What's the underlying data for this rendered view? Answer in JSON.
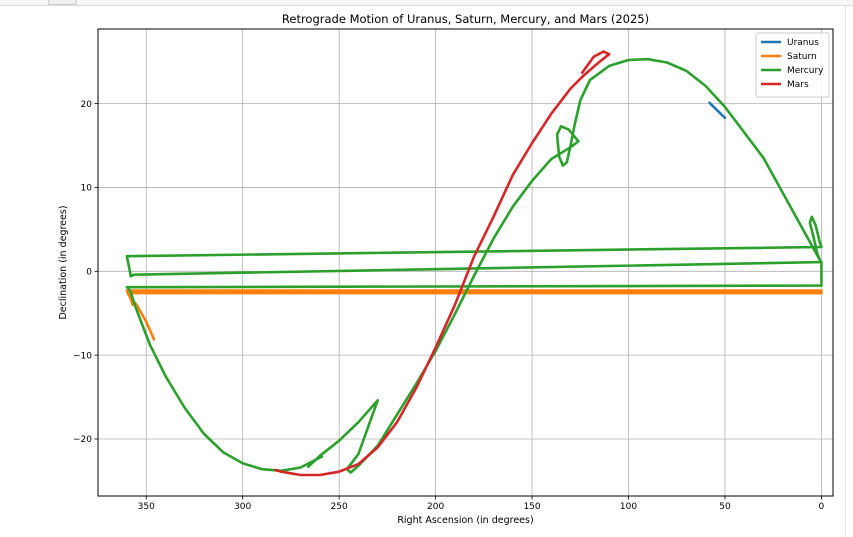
{
  "chart_data": {
    "type": "line",
    "title": "Retrograde Motion of Uranus, Saturn, Mercury, and Mars (2025)",
    "xlabel": "Right Ascension (in degrees)",
    "ylabel": "Declination (in degrees)",
    "x_inverted": true,
    "xlim": [
      375,
      -6
    ],
    "ylim": [
      -26.8,
      28.9
    ],
    "xticks": [
      350,
      300,
      250,
      200,
      150,
      100,
      50,
      0
    ],
    "xtick_labels": [
      "350",
      "300",
      "250",
      "200",
      "150",
      "100",
      "50",
      "0"
    ],
    "yticks": [
      20,
      10,
      0,
      -10,
      -20
    ],
    "ytick_labels": [
      "20",
      "10",
      "0",
      "−10",
      "−20"
    ],
    "grid": true,
    "legend_position": "upper right",
    "series": [
      {
        "name": "Uranus",
        "color": "#1f77b4",
        "points": [
          [
            58,
            20.1
          ],
          [
            50,
            18.3
          ]
        ]
      },
      {
        "name": "Saturn",
        "color": "#ff7f0e",
        "points": [
          [
            346,
            -8.1
          ],
          [
            350,
            -6.0
          ],
          [
            355,
            -4.0
          ],
          [
            359,
            -2.9
          ],
          [
            360,
            -2.3
          ],
          [
            0,
            -2.3
          ],
          [
            0,
            -2.6
          ],
          [
            359.5,
            -2.6
          ],
          [
            358,
            -3.3
          ],
          [
            357,
            -4.0
          ]
        ]
      },
      {
        "name": "Mercury",
        "color": "#2ca02c",
        "points": [
          [
            259,
            -22.1
          ],
          [
            270,
            -23.4
          ],
          [
            280,
            -23.8
          ],
          [
            290,
            -23.6
          ],
          [
            300,
            -22.9
          ],
          [
            310,
            -21.6
          ],
          [
            320,
            -19.4
          ],
          [
            330,
            -16.3
          ],
          [
            340,
            -12.5
          ],
          [
            348,
            -8.8
          ],
          [
            353,
            -5.8
          ],
          [
            356,
            -4.0
          ],
          [
            358,
            -2.5
          ],
          [
            359.5,
            -2.0
          ],
          [
            360,
            -1.9
          ],
          [
            0,
            -1.7
          ],
          [
            0,
            1.1
          ],
          [
            356.5,
            -0.4
          ],
          [
            358,
            -0.6
          ],
          [
            360,
            1.8
          ],
          [
            0,
            2.9
          ],
          [
            1,
            3.6
          ],
          [
            3,
            5.5
          ],
          [
            5,
            6.5
          ],
          [
            6,
            5.8
          ],
          [
            4,
            4.0
          ],
          [
            2,
            2.0
          ],
          [
            0.5,
            1.2
          ],
          [
            30,
            13.5
          ],
          [
            50,
            19.6
          ],
          [
            60,
            22.1
          ],
          [
            70,
            23.9
          ],
          [
            80,
            24.9
          ],
          [
            90,
            25.3
          ],
          [
            100,
            25.2
          ],
          [
            110,
            24.5
          ],
          [
            120,
            22.8
          ],
          [
            125,
            20.4
          ],
          [
            128,
            17.4
          ],
          [
            130,
            15.0
          ],
          [
            132,
            13.0
          ],
          [
            134,
            12.6
          ],
          [
            136,
            13.7
          ],
          [
            137,
            16.3
          ],
          [
            135,
            17.3
          ],
          [
            131,
            16.9
          ],
          [
            126,
            15.5
          ],
          [
            130,
            14.8
          ],
          [
            140,
            13.4
          ],
          [
            150,
            10.8
          ],
          [
            160,
            7.7
          ],
          [
            170,
            3.9
          ],
          [
            180,
            -0.5
          ],
          [
            190,
            -5.1
          ],
          [
            200,
            -9.5
          ],
          [
            210,
            -13.4
          ],
          [
            220,
            -17.1
          ],
          [
            230,
            -20.8
          ],
          [
            240,
            -23.2
          ],
          [
            244,
            -24.0
          ],
          [
            246,
            -23.6
          ],
          [
            240,
            -21.8
          ],
          [
            233,
            -17.3
          ],
          [
            230,
            -15.4
          ],
          [
            240,
            -18.0
          ],
          [
            250,
            -20.2
          ],
          [
            260,
            -22.0
          ],
          [
            266,
            -23.3
          ]
        ]
      },
      {
        "name": "Mars",
        "color": "#d62728",
        "points": [
          [
            124,
            23.7
          ],
          [
            118,
            25.6
          ],
          [
            113,
            26.2
          ],
          [
            110,
            25.9
          ],
          [
            115,
            25.0
          ],
          [
            123,
            23.4
          ],
          [
            130,
            21.8
          ],
          [
            140,
            18.8
          ],
          [
            150,
            15.3
          ],
          [
            160,
            11.5
          ],
          [
            170,
            6.5
          ],
          [
            180,
            1.8
          ],
          [
            190,
            -4.0
          ],
          [
            200,
            -9.1
          ],
          [
            210,
            -13.9
          ],
          [
            220,
            -18.0
          ],
          [
            230,
            -21.0
          ],
          [
            240,
            -23.0
          ],
          [
            250,
            -23.9
          ],
          [
            260,
            -24.3
          ],
          [
            270,
            -24.3
          ],
          [
            280,
            -23.9
          ],
          [
            283,
            -23.7
          ]
        ]
      }
    ]
  }
}
